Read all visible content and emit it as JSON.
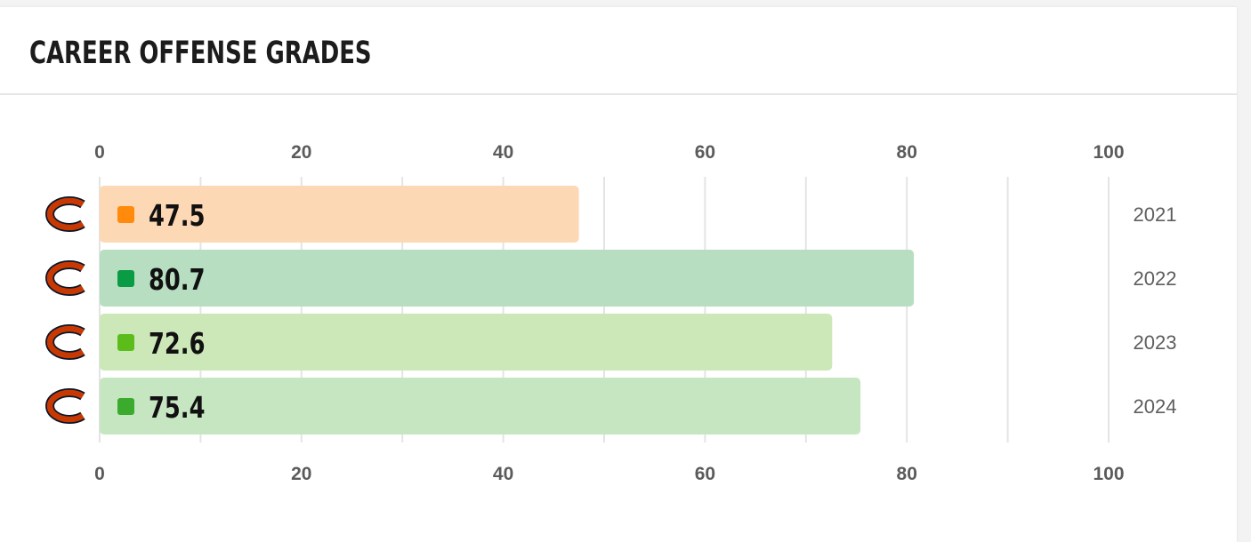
{
  "header": {
    "title": "CAREER OFFENSE GRADES"
  },
  "team_icon": "chicago-bears-c-logo",
  "colors": {
    "orange_bar": "#fdd8b4",
    "orange_marker": "#ff8a0b",
    "dark_green_bar": "#b8dec2",
    "dark_green_marker": "#0a9b45",
    "lime_bar": "#cde8b8",
    "lime_marker": "#5cbd1a",
    "green_bar": "#c6e6c2",
    "green_marker": "#3aab2c",
    "grid": "#e4e4e4",
    "logo_orange": "#c83803",
    "logo_navy": "#0b162a"
  },
  "chart_data": {
    "type": "bar",
    "orientation": "horizontal",
    "title": "CAREER OFFENSE GRADES",
    "categories": [
      "2021",
      "2022",
      "2023",
      "2024"
    ],
    "values": [
      47.5,
      80.7,
      72.6,
      75.4
    ],
    "value_labels": [
      "47.5",
      "80.7",
      "72.6",
      "75.4"
    ],
    "bar_colors": [
      "#fdd8b4",
      "#b8dec2",
      "#cde8b8",
      "#c6e6c2"
    ],
    "marker_colors": [
      "#ff8a0b",
      "#0a9b45",
      "#5cbd1a",
      "#3aab2c"
    ],
    "xlim": [
      0,
      100
    ],
    "x_ticks": [
      0,
      20,
      40,
      60,
      80,
      100
    ],
    "x_tick_labels": [
      "0",
      "20",
      "40",
      "60",
      "80",
      "100"
    ],
    "axis_labels_top_and_bottom": true,
    "grid": true,
    "grid_step": 10,
    "legend": "none"
  }
}
